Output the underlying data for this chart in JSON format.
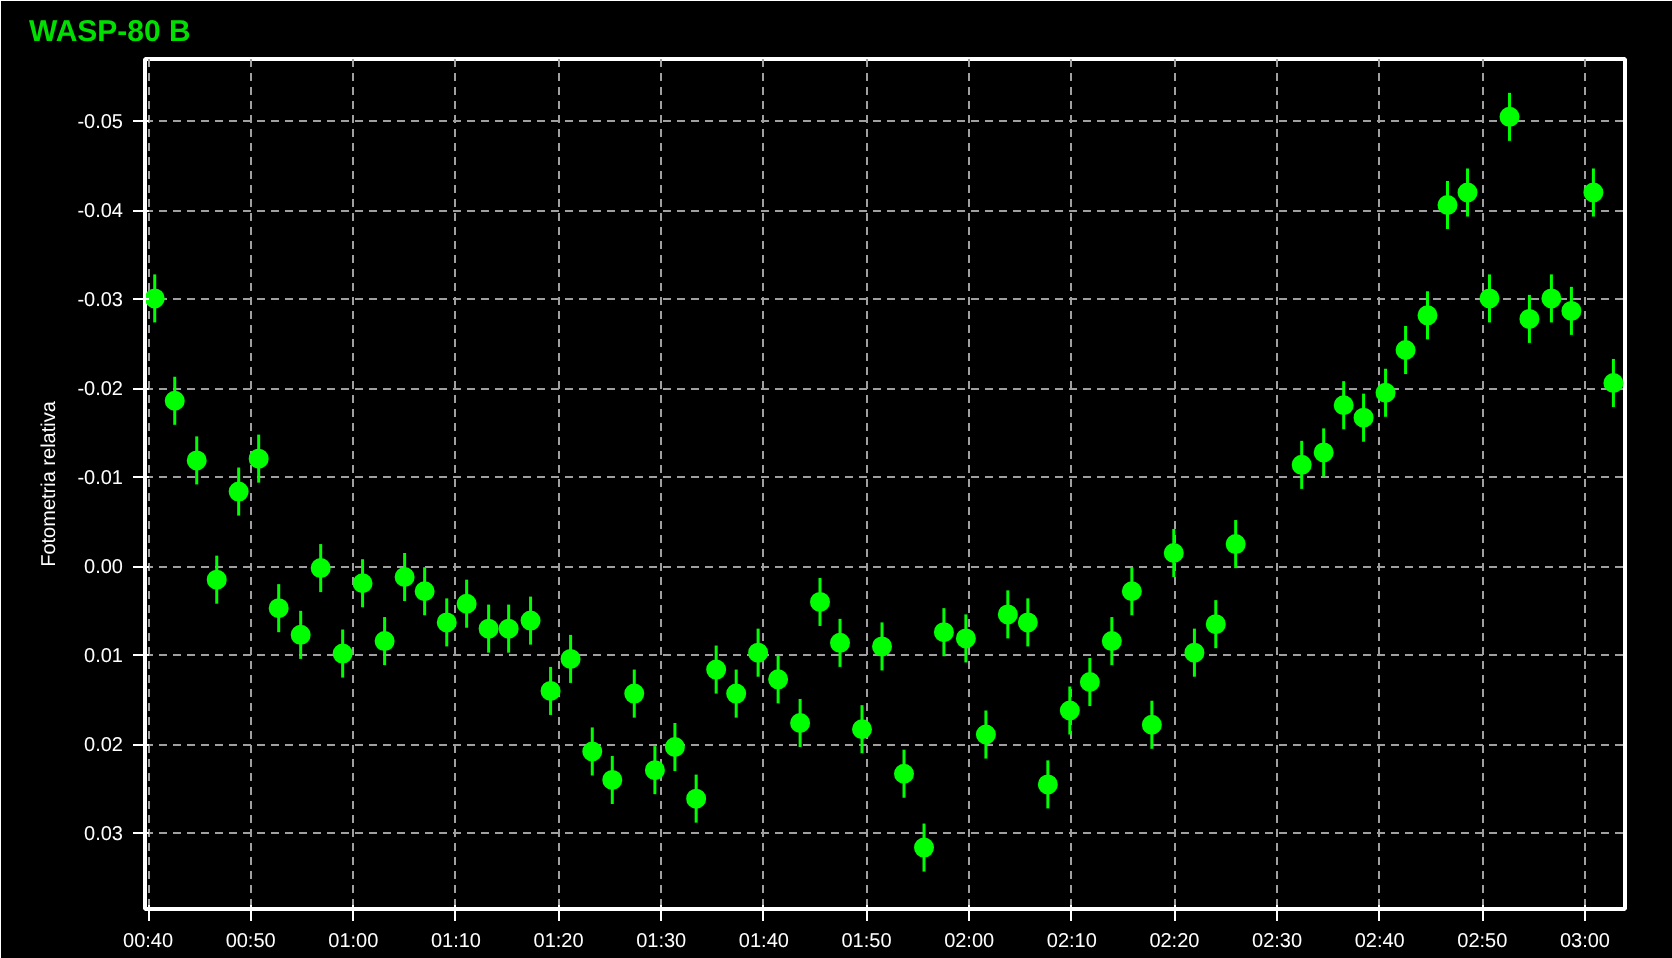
{
  "chart_data": {
    "type": "scatter",
    "title": "WASP-80 B",
    "ylabel": "Fotometria relativa",
    "x": [
      0.6775,
      0.71,
      0.7457,
      0.7782,
      0.8138,
      0.8463,
      0.8788,
      0.9145,
      0.947,
      0.9827,
      1.015,
      1.0508,
      1.0833,
      1.1158,
      1.1517,
      1.184,
      1.2197,
      1.2522,
      1.2878,
      1.3203,
      1.3528,
      1.388,
      1.4205,
      1.4562,
      1.4897,
      1.5222,
      1.5567,
      1.5892,
      1.6217,
      1.6573,
      1.6898,
      1.7255,
      1.7578,
      1.7903,
      1.826,
      1.8585,
      1.8942,
      1.9267,
      1.959,
      1.9947,
      2.0272,
      2.0628,
      2.0953,
      2.1278,
      2.1635,
      2.196,
      2.2317,
      2.2642,
      2.2967,
      2.3323,
      2.3658,
      2.4005,
      2.4328,
      2.54,
      2.5757,
      2.6082,
      2.6405,
      2.6762,
      2.7087,
      2.7443,
      2.7768,
      2.8093,
      2.845,
      2.8775,
      2.9098,
      2.9455,
      2.978,
      3.0137,
      3.0462
    ],
    "series": [
      {
        "color": "#00ff00",
        "values": [
          -0.0301,
          -0.0186,
          -0.0119,
          0.0015,
          -0.0084,
          -0.0121,
          0.0047,
          0.0077,
          0.0002,
          0.0098,
          0.0019,
          0.0084,
          0.0012,
          0.0028,
          0.0063,
          0.0042,
          0.007,
          0.007,
          0.0061,
          0.014,
          0.0104,
          0.0208,
          0.024,
          0.0143,
          0.0229,
          0.0203,
          0.0261,
          0.0116,
          0.0143,
          0.0097,
          0.0127,
          0.0176,
          0.004,
          0.0086,
          0.0183,
          0.009,
          0.0233,
          0.0316,
          0.0074,
          0.0081,
          0.0189,
          0.0054,
          0.0063,
          0.0245,
          0.0162,
          0.013,
          0.0084,
          0.0028,
          0.0178,
          -0.0015,
          0.0097,
          0.0065,
          -0.0025,
          -0.0114,
          -0.0128,
          -0.0181,
          -0.0167,
          -0.0195,
          -0.0243,
          -0.0282,
          -0.0406,
          -0.042,
          -0.0301,
          -0.0505,
          -0.0278,
          -0.0301,
          -0.0287,
          -0.042,
          -0.0206
        ],
        "errors": [
          0.0027,
          0.0027,
          0.0027,
          0.0027,
          0.0027,
          0.0027,
          0.0027,
          0.0027,
          0.0027,
          0.0027,
          0.0027,
          0.0027,
          0.0027,
          0.0027,
          0.0027,
          0.0027,
          0.0027,
          0.0027,
          0.0027,
          0.0027,
          0.0027,
          0.0027,
          0.0027,
          0.0027,
          0.0027,
          0.0027,
          0.0027,
          0.0027,
          0.0027,
          0.0027,
          0.0027,
          0.0027,
          0.0027,
          0.0027,
          0.0027,
          0.0027,
          0.0027,
          0.0027,
          0.0027,
          0.0027,
          0.0027,
          0.0027,
          0.0027,
          0.0027,
          0.0027,
          0.0027,
          0.0027,
          0.0027,
          0.0027,
          0.0027,
          0.0027,
          0.0027,
          0.0027,
          0.0027,
          0.0027,
          0.0027,
          0.0027,
          0.0027,
          0.0027,
          0.0027,
          0.0027,
          0.0027,
          0.0027,
          0.0027,
          0.0027,
          0.0027,
          0.0027,
          0.0027,
          0.0027
        ]
      }
    ],
    "xlim": [
      0.6617,
      3.065
    ],
    "xticks": [
      {
        "value": 0.6667,
        "label": "00:40"
      },
      {
        "value": 0.8333,
        "label": "00:50"
      },
      {
        "value": 1.0,
        "label": "01:00"
      },
      {
        "value": 1.1667,
        "label": "01:10"
      },
      {
        "value": 1.3333,
        "label": "01:20"
      },
      {
        "value": 1.5,
        "label": "01:30"
      },
      {
        "value": 1.6667,
        "label": "01:40"
      },
      {
        "value": 1.8333,
        "label": "01:50"
      },
      {
        "value": 2.0,
        "label": "02:00"
      },
      {
        "value": 2.1667,
        "label": "02:10"
      },
      {
        "value": 2.3333,
        "label": "02:20"
      },
      {
        "value": 2.5,
        "label": "02:30"
      },
      {
        "value": 2.6667,
        "label": "02:40"
      },
      {
        "value": 2.8333,
        "label": "02:50"
      },
      {
        "value": 3.0,
        "label": "03:00"
      }
    ],
    "ylim": [
      0.0385,
      -0.057
    ],
    "yticks": [
      -0.05,
      -0.04,
      -0.03,
      -0.02,
      -0.01,
      {
        "value": 0,
        "label": "0.00"
      },
      0.01,
      0.02,
      0.03
    ],
    "grid": true,
    "marker": "circle"
  }
}
